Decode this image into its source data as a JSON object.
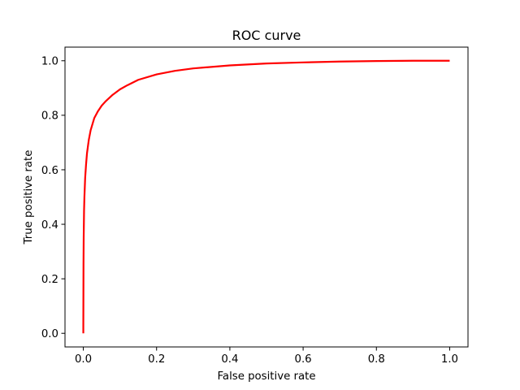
{
  "chart_data": {
    "type": "line",
    "title": "ROC curve",
    "xlabel": "False positive rate",
    "ylabel": "True positive rate",
    "xlim": [
      -0.05,
      1.05
    ],
    "ylim": [
      -0.05,
      1.05
    ],
    "xticks": [
      0.0,
      0.2,
      0.4,
      0.6,
      0.8,
      1.0
    ],
    "yticks": [
      0.0,
      0.2,
      0.4,
      0.6,
      0.8,
      1.0
    ],
    "xtick_labels": [
      "0.0",
      "0.2",
      "0.4",
      "0.6",
      "0.8",
      "1.0"
    ],
    "ytick_labels": [
      "0.0",
      "0.2",
      "0.4",
      "0.6",
      "0.8",
      "1.0"
    ],
    "grid": false,
    "legend": "none",
    "series": [
      {
        "color": "#ff0000",
        "x": [
          0.0,
          0.0,
          0.0005,
          0.001,
          0.002,
          0.003,
          0.005,
          0.0075,
          0.01,
          0.015,
          0.02,
          0.03,
          0.04,
          0.05,
          0.06,
          0.08,
          0.1,
          0.12,
          0.15,
          0.2,
          0.25,
          0.3,
          0.4,
          0.5,
          0.6,
          0.7,
          0.8,
          0.9,
          1.0
        ],
        "y": [
          0.0,
          0.02,
          0.25,
          0.35,
          0.45,
          0.5,
          0.57,
          0.62,
          0.66,
          0.71,
          0.745,
          0.79,
          0.815,
          0.835,
          0.85,
          0.875,
          0.895,
          0.91,
          0.93,
          0.95,
          0.963,
          0.972,
          0.983,
          0.99,
          0.994,
          0.997,
          0.999,
          1.0,
          1.0
        ]
      }
    ]
  }
}
